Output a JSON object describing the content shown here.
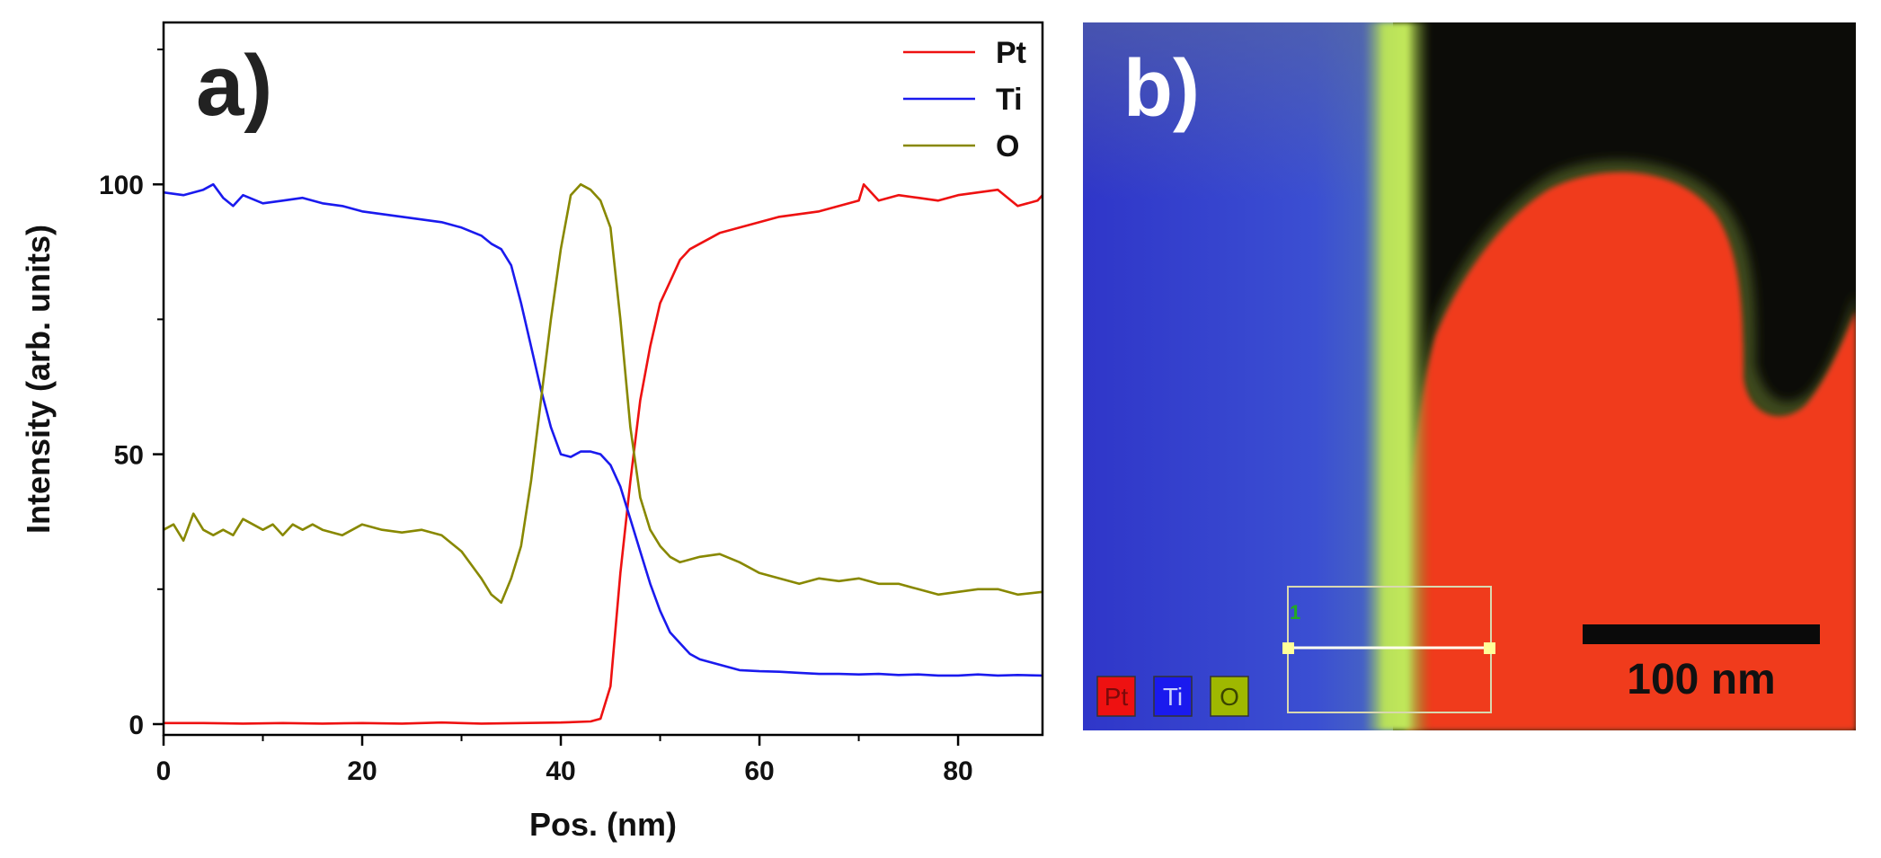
{
  "chart_data": {
    "type": "line",
    "panel_label": "a)",
    "xlabel": "Pos. (nm)",
    "ylabel": "Intensity (arb. units)",
    "xlim": [
      0,
      88.5
    ],
    "ylim": [
      -2,
      130
    ],
    "xticks": [
      0,
      20,
      40,
      60,
      80
    ],
    "xtick_labels": [
      "0",
      "20",
      "40",
      "60",
      "80"
    ],
    "yticks": [
      0,
      50,
      100
    ],
    "ytick_labels": [
      "0",
      "50",
      "100"
    ],
    "legend_position": "top-right",
    "series": [
      {
        "name": "Pt",
        "color": "#ee1111",
        "x": [
          0,
          4,
          8,
          12,
          16,
          20,
          24,
          28,
          32,
          36,
          40,
          43,
          44,
          45,
          46,
          47,
          48,
          49,
          50,
          51,
          52,
          53,
          54,
          55,
          56,
          58,
          60,
          62,
          64,
          66,
          68,
          70,
          70.5,
          72,
          74,
          76,
          78,
          80,
          82,
          84,
          86,
          88,
          88.5
        ],
        "y": [
          0.2,
          0.2,
          0.1,
          0.2,
          0.1,
          0.2,
          0.1,
          0.3,
          0.1,
          0.2,
          0.3,
          0.5,
          1,
          7,
          28,
          45,
          60,
          70,
          78,
          82,
          86,
          88,
          89,
          90,
          91,
          92,
          93,
          94,
          94.5,
          95,
          96,
          97,
          100,
          97,
          98,
          97.5,
          97,
          98,
          98.5,
          99,
          96,
          97,
          98
        ]
      },
      {
        "name": "Ti",
        "color": "#1a1aee",
        "x": [
          0,
          2,
          4,
          5,
          6,
          7,
          8,
          10,
          12,
          14,
          16,
          18,
          20,
          22,
          24,
          26,
          28,
          30,
          32,
          33,
          34,
          35,
          36,
          37,
          38,
          39,
          40,
          41,
          42,
          43,
          44,
          45,
          46,
          47,
          48,
          49,
          50,
          51,
          52,
          53,
          54,
          56,
          58,
          60,
          62,
          64,
          66,
          68,
          70,
          72,
          74,
          76,
          78,
          80,
          82,
          84,
          86,
          88.5
        ],
        "y": [
          98.5,
          98,
          99,
          100,
          97.5,
          96,
          98,
          96.5,
          97,
          97.5,
          96.5,
          96,
          95,
          94.5,
          94,
          93.5,
          93,
          92,
          90.5,
          89,
          88,
          85,
          78,
          70,
          62,
          55,
          50,
          49.5,
          50.5,
          50.5,
          50,
          48,
          44,
          38,
          32,
          26,
          21,
          17,
          15,
          13,
          12,
          11,
          10,
          9.8,
          9.7,
          9.5,
          9.3,
          9.3,
          9.2,
          9.3,
          9.1,
          9.2,
          9,
          9,
          9.2,
          9,
          9.1,
          9
        ]
      },
      {
        "name": "O",
        "color": "#888800",
        "x": [
          0,
          1,
          2,
          3,
          4,
          5,
          6,
          7,
          8,
          9,
          10,
          11,
          12,
          13,
          14,
          15,
          16,
          18,
          20,
          22,
          24,
          26,
          28,
          30,
          32,
          33,
          34,
          35,
          36,
          37,
          38,
          39,
          40,
          41,
          42,
          43,
          44,
          45,
          46,
          47,
          48,
          49,
          50,
          51,
          52,
          54,
          56,
          58,
          60,
          62,
          64,
          66,
          68,
          70,
          72,
          74,
          76,
          78,
          80,
          82,
          84,
          86,
          88.5
        ],
        "y": [
          36,
          37,
          34,
          39,
          36,
          35,
          36,
          35,
          38,
          37,
          36,
          37,
          35,
          37,
          36,
          37,
          36,
          35,
          37,
          36,
          35.5,
          36,
          35,
          32,
          27,
          24,
          22.5,
          27,
          33,
          45,
          60,
          75,
          88,
          98,
          100,
          99,
          97,
          92,
          75,
          55,
          42,
          36,
          33,
          31,
          30,
          31,
          31.5,
          30,
          28,
          27,
          26,
          27,
          26.5,
          27,
          26,
          26,
          25,
          24,
          24.5,
          25,
          25,
          24,
          24.5
        ]
      }
    ]
  },
  "map": {
    "panel_label": "b)",
    "legend": [
      {
        "label": "Pt",
        "color": "#ee1111"
      },
      {
        "label": "Ti",
        "color": "#1a1aee"
      },
      {
        "label": "O",
        "color": "#9fb800"
      }
    ],
    "profile_marker": "1",
    "scale_bar_label": "100 nm"
  }
}
